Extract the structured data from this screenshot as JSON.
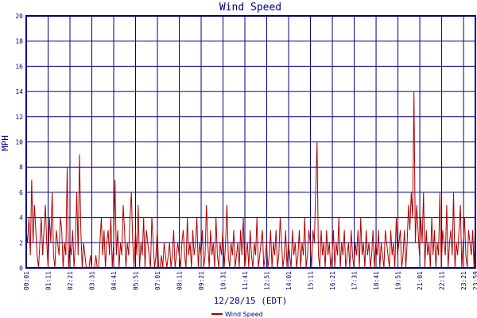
{
  "colors": {
    "grid": "#000080",
    "series": "#b00000",
    "axis_text": "#000080",
    "background": "#ffffff"
  },
  "chart_data": {
    "type": "line",
    "title": "Wind Speed",
    "xlabel": "12/28/15 (EDT)",
    "ylabel": "MPH",
    "ylim": [
      0,
      20
    ],
    "y_ticks": [
      0,
      2,
      4,
      6,
      8,
      10,
      12,
      14,
      16,
      18,
      20
    ],
    "x_ticks": [
      "00:01",
      "01:11",
      "02:21",
      "03:31",
      "04:41",
      "05:51",
      "07:01",
      "08:11",
      "09:21",
      "10:31",
      "11:41",
      "12:51",
      "14:01",
      "15:11",
      "16:21",
      "17:31",
      "18:41",
      "19:51",
      "21:01",
      "22:11",
      "23:21",
      "23:59"
    ],
    "xlim_minutes": [
      1,
      1439
    ],
    "grid": true,
    "legend_position": "bottom-center",
    "series": [
      {
        "name": "Wind Speed",
        "values": [
          3,
          2,
          4,
          1,
          7,
          2,
          5,
          3,
          1,
          0,
          2,
          4,
          1,
          3,
          5,
          2,
          0,
          4,
          2,
          6,
          1,
          0,
          3,
          2,
          1,
          4,
          3,
          0,
          2,
          1,
          8,
          0,
          2,
          1,
          3,
          0,
          2,
          6,
          1,
          9,
          3,
          0,
          2,
          1,
          0,
          0,
          0,
          1,
          0,
          0,
          0,
          1,
          0,
          0,
          2,
          4,
          1,
          3,
          0,
          2,
          3,
          1,
          4,
          0,
          2,
          7,
          1,
          3,
          0,
          2,
          1,
          5,
          3,
          0,
          2,
          1,
          4,
          6,
          2,
          0,
          3,
          1,
          5,
          0,
          2,
          1,
          4,
          0,
          3,
          2,
          1,
          0,
          4,
          2,
          0,
          1,
          3,
          0,
          0,
          1,
          0,
          2,
          1,
          0,
          1,
          2,
          0,
          1,
          3,
          0,
          1,
          2,
          1,
          0,
          2,
          3,
          1,
          0,
          4,
          1,
          2,
          0,
          3,
          1,
          2,
          4,
          0,
          2,
          1,
          3,
          0,
          1,
          5,
          2,
          0,
          3,
          1,
          2,
          0,
          4,
          1,
          0,
          2,
          1,
          3,
          0,
          2,
          5,
          1,
          0,
          2,
          1,
          3,
          0,
          1,
          2,
          0,
          3,
          1,
          4,
          0,
          1,
          2,
          0,
          3,
          1,
          0,
          2,
          1,
          4,
          0,
          1,
          2,
          3,
          0,
          1,
          2,
          0,
          1,
          3,
          0,
          2,
          1,
          3,
          0,
          1,
          4,
          2,
          0,
          1,
          3,
          0,
          2,
          1,
          0,
          3,
          1,
          2,
          0,
          1,
          3,
          0,
          2,
          1,
          4,
          0,
          1,
          3,
          2,
          0,
          3,
          2,
          6,
          10,
          1,
          0,
          3,
          1,
          2,
          0,
          3,
          1,
          2,
          0,
          1,
          3,
          0,
          2,
          1,
          4,
          0,
          2,
          1,
          3,
          0,
          1,
          2,
          0,
          3,
          1,
          0,
          2,
          1,
          3,
          0,
          4,
          1,
          2,
          0,
          3,
          1,
          2,
          0,
          1,
          3,
          0,
          2,
          1,
          3,
          0,
          2,
          1,
          0,
          3,
          2,
          1,
          0,
          3,
          1,
          2,
          0,
          4,
          1,
          2,
          3,
          0,
          1,
          3,
          0,
          2,
          5,
          3,
          6,
          4,
          14,
          2,
          5,
          3,
          1,
          4,
          2,
          6,
          0,
          3,
          1,
          2,
          0,
          4,
          1,
          3,
          0,
          2,
          1,
          6,
          0,
          3,
          2,
          1,
          5,
          0,
          2,
          3,
          1,
          6,
          0,
          2,
          1,
          3,
          5,
          0,
          2,
          4,
          1,
          0,
          3,
          2,
          1,
          3,
          0,
          4
        ],
        "x_start_minutes": 1,
        "x_end_minutes": 1439
      }
    ]
  }
}
